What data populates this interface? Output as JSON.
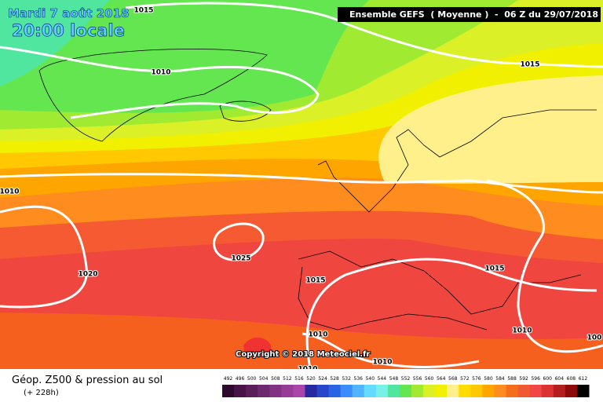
{
  "header": {
    "date": "Mardi 7 août 2018",
    "time": "20:00 locale",
    "model": "Ensemble GEFS  ( Moyenne )  -  06 Z du 29/07/2018"
  },
  "isobar_labels": [
    "1015",
    "1010",
    "1015",
    "1010",
    "1025",
    "1020",
    "1015",
    "1015",
    "1010",
    "1010",
    "1010",
    "1010",
    "100"
  ],
  "copyright": "Copyright © 2018 Meteociel.fr",
  "legend": {
    "title": "Géop. Z500 & pression au sol",
    "subtitle": "(+ 228h)",
    "ticks": [
      492,
      496,
      500,
      504,
      508,
      512,
      516,
      520,
      524,
      528,
      532,
      536,
      540,
      544,
      548,
      552,
      556,
      560,
      564,
      568,
      572,
      576,
      580,
      584,
      588,
      592,
      596,
      600,
      604,
      608,
      612
    ],
    "colors": [
      "#2d0a2d",
      "#461446",
      "#5a1e5a",
      "#6e286e",
      "#823282",
      "#963c96",
      "#aa46aa",
      "#2828a0",
      "#2846c8",
      "#2864e6",
      "#3c8cff",
      "#50b4ff",
      "#64dcff",
      "#78f0e6",
      "#50e6a0",
      "#64e650",
      "#a0eb32",
      "#dcf028",
      "#f0f000",
      "#fff08c",
      "#ffdc00",
      "#ffc800",
      "#ffa500",
      "#ff8c1e",
      "#f56e1e",
      "#f05a32",
      "#f04646",
      "#dc3232",
      "#b41e1e",
      "#8c0a0a",
      "#000000"
    ]
  }
}
